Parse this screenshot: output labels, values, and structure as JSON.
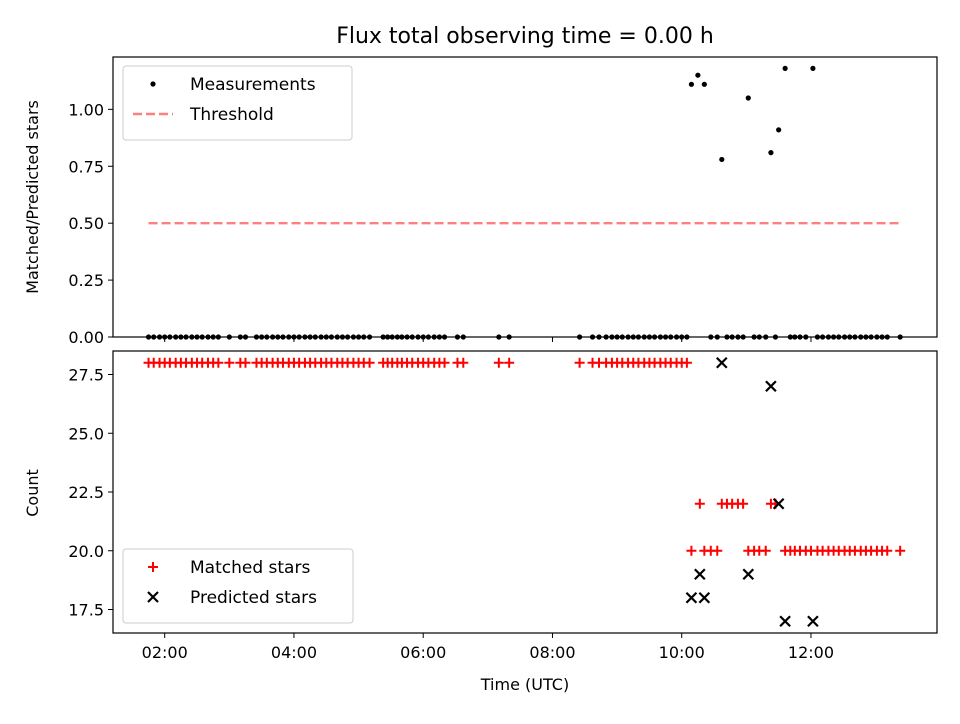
{
  "chart_data": {
    "title": "Flux total observing time = 0.00 h",
    "xlabel": "Time (UTC)",
    "x_ticks": [
      "02:00",
      "04:00",
      "06:00",
      "08:00",
      "10:00",
      "12:00"
    ],
    "x_tick_hours": [
      2,
      4,
      6,
      8,
      10,
      12
    ],
    "xlim_hours": [
      1.2,
      13.95
    ],
    "panels": [
      {
        "type": "scatter",
        "ylabel": "Matched/Predicted stars",
        "ylim": [
          0,
          1.23
        ],
        "yticks": [
          0.0,
          0.25,
          0.5,
          0.75,
          1.0
        ],
        "ytick_labels": [
          "0.00",
          "0.25",
          "0.50",
          "0.75",
          "1.00"
        ],
        "legend_position": "upper left",
        "series": [
          {
            "name": "Measurements",
            "marker": "dot",
            "color": "#000000",
            "points": [
              [
                1.75,
                0
              ],
              [
                1.83,
                0
              ],
              [
                1.92,
                0
              ],
              [
                2.0,
                0
              ],
              [
                2.08,
                0
              ],
              [
                2.17,
                0
              ],
              [
                2.25,
                0
              ],
              [
                2.33,
                0
              ],
              [
                2.42,
                0
              ],
              [
                2.5,
                0
              ],
              [
                2.58,
                0
              ],
              [
                2.67,
                0
              ],
              [
                2.75,
                0
              ],
              [
                2.83,
                0
              ],
              [
                3.0,
                0
              ],
              [
                3.17,
                0
              ],
              [
                3.25,
                0
              ],
              [
                3.42,
                0
              ],
              [
                3.5,
                0
              ],
              [
                3.58,
                0
              ],
              [
                3.67,
                0
              ],
              [
                3.75,
                0
              ],
              [
                3.83,
                0
              ],
              [
                3.92,
                0
              ],
              [
                4.0,
                0
              ],
              [
                4.08,
                0
              ],
              [
                4.17,
                0
              ],
              [
                4.25,
                0
              ],
              [
                4.33,
                0
              ],
              [
                4.42,
                0
              ],
              [
                4.5,
                0
              ],
              [
                4.58,
                0
              ],
              [
                4.67,
                0
              ],
              [
                4.75,
                0
              ],
              [
                4.83,
                0
              ],
              [
                4.92,
                0
              ],
              [
                5.0,
                0
              ],
              [
                5.08,
                0
              ],
              [
                5.17,
                0
              ],
              [
                5.38,
                0
              ],
              [
                5.45,
                0
              ],
              [
                5.52,
                0
              ],
              [
                5.6,
                0
              ],
              [
                5.67,
                0
              ],
              [
                5.75,
                0
              ],
              [
                5.83,
                0
              ],
              [
                5.92,
                0
              ],
              [
                6.0,
                0
              ],
              [
                6.08,
                0
              ],
              [
                6.17,
                0
              ],
              [
                6.25,
                0
              ],
              [
                6.33,
                0
              ],
              [
                6.53,
                0
              ],
              [
                6.62,
                0
              ],
              [
                7.17,
                0
              ],
              [
                7.33,
                0
              ],
              [
                8.42,
                0
              ],
              [
                8.62,
                0
              ],
              [
                8.72,
                0
              ],
              [
                8.83,
                0
              ],
              [
                8.92,
                0
              ],
              [
                9.0,
                0
              ],
              [
                9.08,
                0
              ],
              [
                9.17,
                0
              ],
              [
                9.25,
                0
              ],
              [
                9.33,
                0
              ],
              [
                9.42,
                0
              ],
              [
                9.5,
                0
              ],
              [
                9.58,
                0
              ],
              [
                9.67,
                0
              ],
              [
                9.75,
                0
              ],
              [
                9.83,
                0
              ],
              [
                9.92,
                0
              ],
              [
                10.0,
                0
              ],
              [
                10.08,
                0
              ],
              [
                10.15,
                1.11
              ],
              [
                10.25,
                1.15
              ],
              [
                10.35,
                1.11
              ],
              [
                10.45,
                0
              ],
              [
                10.55,
                0
              ],
              [
                10.62,
                0.78
              ],
              [
                10.7,
                0
              ],
              [
                10.78,
                0
              ],
              [
                10.87,
                0
              ],
              [
                10.95,
                0
              ],
              [
                11.03,
                1.05
              ],
              [
                11.12,
                0
              ],
              [
                11.2,
                0
              ],
              [
                11.3,
                0
              ],
              [
                11.38,
                0.81
              ],
              [
                11.45,
                0
              ],
              [
                11.5,
                0.91
              ],
              [
                11.6,
                1.18
              ],
              [
                11.68,
                0
              ],
              [
                11.75,
                0
              ],
              [
                11.83,
                0
              ],
              [
                11.92,
                0
              ],
              [
                12.03,
                1.18
              ],
              [
                12.1,
                0
              ],
              [
                12.18,
                0
              ],
              [
                12.27,
                0
              ],
              [
                12.35,
                0
              ],
              [
                12.43,
                0
              ],
              [
                12.52,
                0
              ],
              [
                12.6,
                0
              ],
              [
                12.68,
                0
              ],
              [
                12.77,
                0
              ],
              [
                12.85,
                0
              ],
              [
                12.93,
                0
              ],
              [
                13.02,
                0
              ],
              [
                13.1,
                0
              ],
              [
                13.18,
                0
              ],
              [
                13.38,
                0
              ]
            ]
          },
          {
            "name": "Threshold",
            "marker": "dashed-line",
            "color": "#ff7f7f",
            "points": [
              [
                1.75,
                0.5
              ],
              [
                13.38,
                0.5
              ]
            ]
          }
        ]
      },
      {
        "type": "scatter",
        "ylabel": "Count",
        "ylim": [
          16.5,
          28.5
        ],
        "yticks": [
          17.5,
          20.0,
          22.5,
          25.0,
          27.5
        ],
        "ytick_labels": [
          "17.5",
          "20.0",
          "22.5",
          "25.0",
          "27.5"
        ],
        "legend_position": "lower left",
        "series": [
          {
            "name": "Matched stars",
            "marker": "plus",
            "color": "#ff0000",
            "points": [
              [
                1.75,
                28
              ],
              [
                1.83,
                28
              ],
              [
                1.92,
                28
              ],
              [
                2.0,
                28
              ],
              [
                2.08,
                28
              ],
              [
                2.17,
                28
              ],
              [
                2.25,
                28
              ],
              [
                2.33,
                28
              ],
              [
                2.42,
                28
              ],
              [
                2.5,
                28
              ],
              [
                2.58,
                28
              ],
              [
                2.67,
                28
              ],
              [
                2.75,
                28
              ],
              [
                2.83,
                28
              ],
              [
                3.0,
                28
              ],
              [
                3.17,
                28
              ],
              [
                3.25,
                28
              ],
              [
                3.42,
                28
              ],
              [
                3.5,
                28
              ],
              [
                3.58,
                28
              ],
              [
                3.67,
                28
              ],
              [
                3.75,
                28
              ],
              [
                3.83,
                28
              ],
              [
                3.92,
                28
              ],
              [
                4.0,
                28
              ],
              [
                4.08,
                28
              ],
              [
                4.17,
                28
              ],
              [
                4.25,
                28
              ],
              [
                4.33,
                28
              ],
              [
                4.42,
                28
              ],
              [
                4.5,
                28
              ],
              [
                4.58,
                28
              ],
              [
                4.67,
                28
              ],
              [
                4.75,
                28
              ],
              [
                4.83,
                28
              ],
              [
                4.92,
                28
              ],
              [
                5.0,
                28
              ],
              [
                5.08,
                28
              ],
              [
                5.17,
                28
              ],
              [
                5.38,
                28
              ],
              [
                5.45,
                28
              ],
              [
                5.52,
                28
              ],
              [
                5.6,
                28
              ],
              [
                5.67,
                28
              ],
              [
                5.75,
                28
              ],
              [
                5.83,
                28
              ],
              [
                5.92,
                28
              ],
              [
                6.0,
                28
              ],
              [
                6.08,
                28
              ],
              [
                6.17,
                28
              ],
              [
                6.25,
                28
              ],
              [
                6.33,
                28
              ],
              [
                6.53,
                28
              ],
              [
                6.62,
                28
              ],
              [
                7.17,
                28
              ],
              [
                7.33,
                28
              ],
              [
                8.42,
                28
              ],
              [
                8.62,
                28
              ],
              [
                8.72,
                28
              ],
              [
                8.83,
                28
              ],
              [
                8.92,
                28
              ],
              [
                9.0,
                28
              ],
              [
                9.08,
                28
              ],
              [
                9.17,
                28
              ],
              [
                9.25,
                28
              ],
              [
                9.33,
                28
              ],
              [
                9.42,
                28
              ],
              [
                9.5,
                28
              ],
              [
                9.58,
                28
              ],
              [
                9.67,
                28
              ],
              [
                9.75,
                28
              ],
              [
                9.83,
                28
              ],
              [
                9.92,
                28
              ],
              [
                10.0,
                28
              ],
              [
                10.08,
                28
              ],
              [
                10.15,
                20
              ],
              [
                10.28,
                22
              ],
              [
                10.35,
                20
              ],
              [
                10.45,
                20
              ],
              [
                10.55,
                20
              ],
              [
                10.62,
                22
              ],
              [
                10.7,
                22
              ],
              [
                10.78,
                22
              ],
              [
                10.87,
                22
              ],
              [
                10.95,
                22
              ],
              [
                11.03,
                20
              ],
              [
                11.12,
                20
              ],
              [
                11.2,
                20
              ],
              [
                11.3,
                20
              ],
              [
                11.38,
                22
              ],
              [
                11.45,
                22
              ],
              [
                11.6,
                20
              ],
              [
                11.68,
                20
              ],
              [
                11.75,
                20
              ],
              [
                11.83,
                20
              ],
              [
                11.92,
                20
              ],
              [
                12.0,
                20
              ],
              [
                12.1,
                20
              ],
              [
                12.18,
                20
              ],
              [
                12.27,
                20
              ],
              [
                12.35,
                20
              ],
              [
                12.43,
                20
              ],
              [
                12.52,
                20
              ],
              [
                12.6,
                20
              ],
              [
                12.68,
                20
              ],
              [
                12.77,
                20
              ],
              [
                12.85,
                20
              ],
              [
                12.93,
                20
              ],
              [
                13.02,
                20
              ],
              [
                13.1,
                20
              ],
              [
                13.18,
                20
              ],
              [
                13.38,
                20
              ]
            ]
          },
          {
            "name": "Predicted stars",
            "marker": "x",
            "color": "#000000",
            "points": [
              [
                10.15,
                18
              ],
              [
                10.28,
                19
              ],
              [
                10.35,
                18
              ],
              [
                10.62,
                28
              ],
              [
                11.03,
                19
              ],
              [
                11.38,
                27
              ],
              [
                11.5,
                22
              ],
              [
                11.6,
                17
              ],
              [
                12.03,
                17
              ]
            ]
          }
        ]
      }
    ]
  }
}
